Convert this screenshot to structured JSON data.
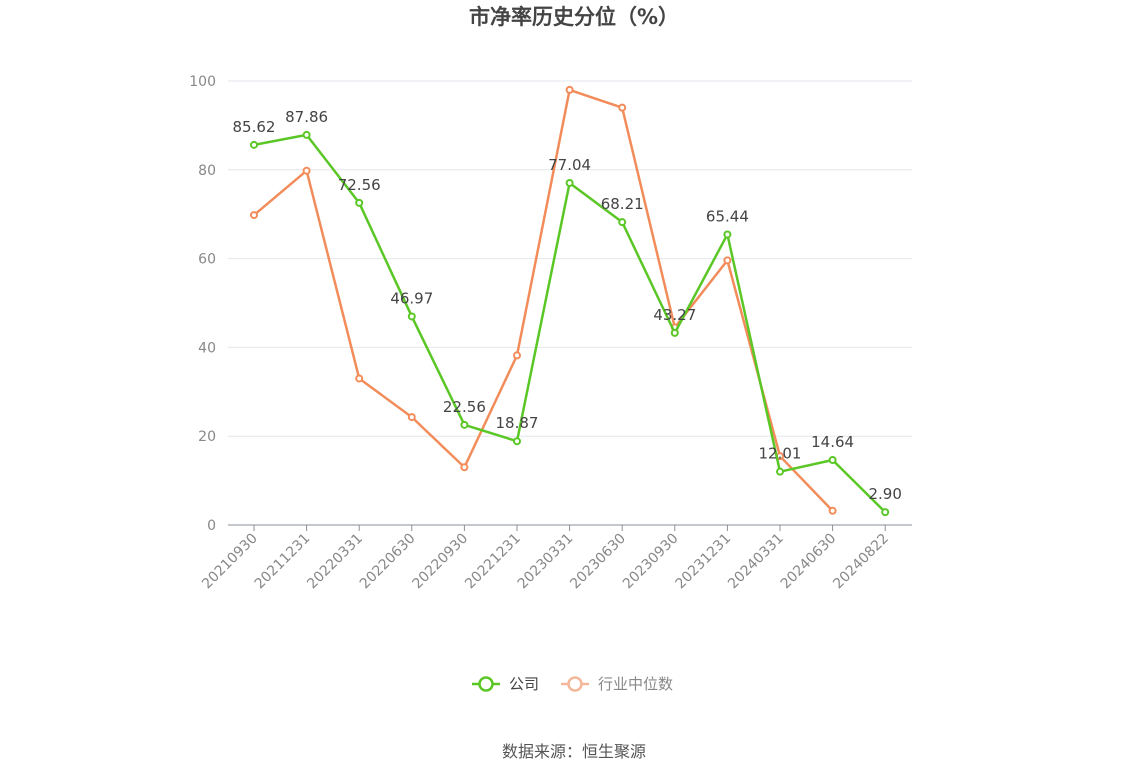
{
  "chart_data": {
    "type": "line",
    "title": "市净率历史分位（%）",
    "categories": [
      "20210930",
      "20211231",
      "20220331",
      "20220630",
      "20220930",
      "20221231",
      "20230331",
      "20230630",
      "20230930",
      "20231231",
      "20240331",
      "20240630",
      "20240822"
    ],
    "ylim": [
      0,
      100
    ],
    "yticks": [
      0,
      20,
      40,
      60,
      80,
      100
    ],
    "grid": true,
    "legend_position": "bottom",
    "series": [
      {
        "name": "公司",
        "color": "#5ac726",
        "values": [
          85.62,
          87.86,
          72.56,
          46.97,
          22.56,
          18.87,
          77.04,
          68.21,
          43.27,
          65.44,
          12.01,
          14.64,
          2.9
        ],
        "labels": [
          "85.62",
          "87.86",
          "72.56",
          "46.97",
          "22.56",
          "18.87",
          "77.04",
          "68.21",
          "43.27",
          "65.44",
          "12.01",
          "14.64",
          "2.90"
        ]
      },
      {
        "name": "行业中位数",
        "color": "#f28c5a",
        "legend_color": "#f5b79a",
        "values": [
          69.8,
          79.8,
          33.0,
          24.3,
          13.0,
          38.2,
          98.0,
          94.0,
          44.5,
          59.6,
          15.5,
          3.2,
          null
        ]
      }
    ]
  },
  "source": "数据来源：恒生聚源"
}
